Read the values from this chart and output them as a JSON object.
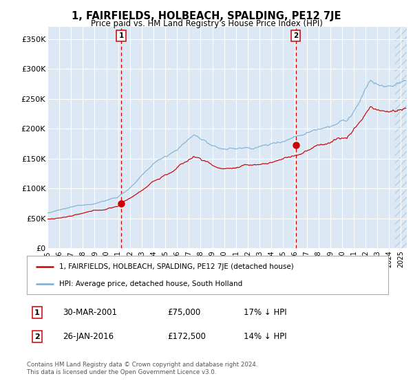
{
  "title": "1, FAIRFIELDS, HOLBEACH, SPALDING, PE12 7JE",
  "subtitle": "Price paid vs. HM Land Registry's House Price Index (HPI)",
  "ylabel_ticks": [
    "£0",
    "£50K",
    "£100K",
    "£150K",
    "£200K",
    "£250K",
    "£300K",
    "£350K"
  ],
  "ytick_values": [
    0,
    50000,
    100000,
    150000,
    200000,
    250000,
    300000,
    350000
  ],
  "ylim": [
    0,
    370000
  ],
  "xlim_start": 1995.0,
  "xlim_end": 2025.5,
  "bg_color": "#dce9f5",
  "hatch_color": "#b8cfe0",
  "grid_color": "#ffffff",
  "red_line_color": "#cc0000",
  "blue_line_color": "#7bafd4",
  "marker_color": "#cc0000",
  "dashed_line_color": "#cc0000",
  "sale1_date_x": 2001.25,
  "sale1_price": 75000,
  "sale1_label": "30-MAR-2001",
  "sale1_price_label": "£75,000",
  "sale1_hpi_label": "17% ↓ HPI",
  "sale2_date_x": 2016.07,
  "sale2_price": 172500,
  "sale2_label": "26-JAN-2016",
  "sale2_price_label": "£172,500",
  "sale2_hpi_label": "14% ↓ HPI",
  "legend_line1": "1, FAIRFIELDS, HOLBEACH, SPALDING, PE12 7JE (detached house)",
  "legend_line2": "HPI: Average price, detached house, South Holland",
  "footer": "Contains HM Land Registry data © Crown copyright and database right 2024.\nThis data is licensed under the Open Government Licence v3.0.",
  "xtick_years": [
    1995,
    1996,
    1997,
    1998,
    1999,
    2000,
    2001,
    2002,
    2003,
    2004,
    2005,
    2006,
    2007,
    2008,
    2009,
    2010,
    2011,
    2012,
    2013,
    2014,
    2015,
    2016,
    2017,
    2018,
    2019,
    2020,
    2021,
    2022,
    2023,
    2024,
    2025
  ],
  "hatch_start": 2024.5,
  "fig_width": 6.0,
  "fig_height": 5.6,
  "dpi": 100
}
